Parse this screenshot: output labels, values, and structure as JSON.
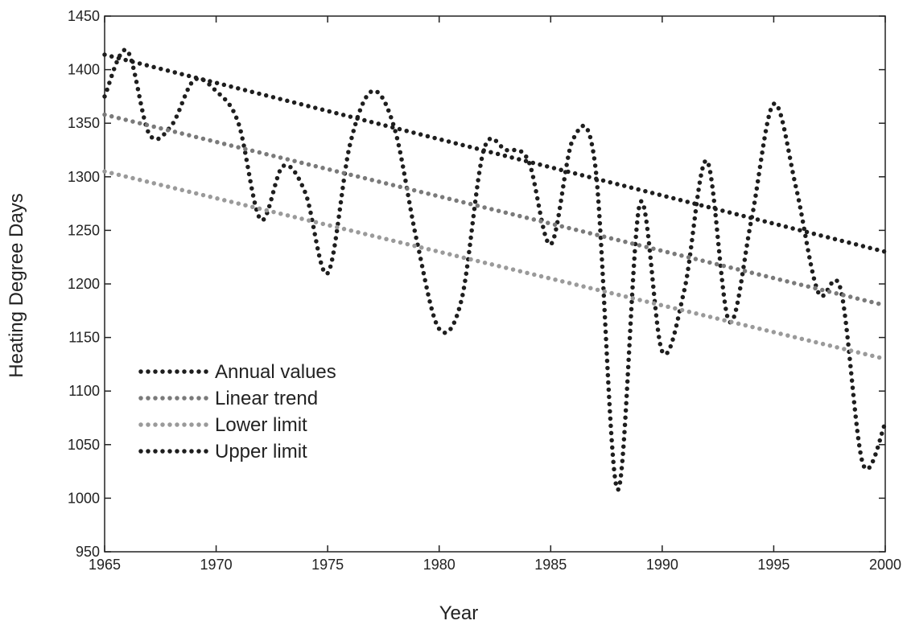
{
  "chart_data": {
    "type": "line",
    "xlabel": "Year",
    "ylabel": "Heating Degree Days",
    "xlim": [
      1965,
      2000
    ],
    "xticks": [
      1965,
      1970,
      1975,
      1980,
      1985,
      1990,
      1995,
      2000
    ],
    "ylim": [
      950,
      1450
    ],
    "yticks": [
      950,
      1000,
      1050,
      1100,
      1150,
      1200,
      1250,
      1300,
      1350,
      1400,
      1450
    ],
    "legend": "lower-left",
    "series": [
      {
        "name": "Annual values",
        "color": "#1e1e1e",
        "x": [
          1965,
          1966,
          1967,
          1968,
          1969,
          1970,
          1971,
          1972,
          1973,
          1974,
          1975,
          1976,
          1977,
          1978,
          1979,
          1980,
          1981,
          1982,
          1983,
          1984,
          1985,
          1986,
          1987,
          1988,
          1989,
          1990,
          1991,
          1992,
          1993,
          1994,
          1995,
          1996,
          1997,
          1998,
          1999,
          2000
        ],
        "values": [
          1375,
          1418,
          1340,
          1348,
          1390,
          1380,
          1350,
          1260,
          1310,
          1285,
          1210,
          1330,
          1380,
          1345,
          1240,
          1158,
          1185,
          1325,
          1325,
          1315,
          1237,
          1335,
          1310,
          1008,
          1275,
          1137,
          1195,
          1315,
          1165,
          1260,
          1368,
          1290,
          1192,
          1195,
          1032,
          1070
        ]
      },
      {
        "name": "Linear trend",
        "color": "#7a7a7a",
        "x": [
          1965,
          2000
        ],
        "values": [
          1358,
          1180
        ]
      },
      {
        "name": "Lower limit",
        "color": "#9a9a9a",
        "x": [
          1965,
          2000
        ],
        "values": [
          1305,
          1130
        ]
      },
      {
        "name": "Upper limit",
        "color": "#1e1e1e",
        "x": [
          1965,
          2000
        ],
        "values": [
          1414,
          1230
        ]
      }
    ]
  }
}
